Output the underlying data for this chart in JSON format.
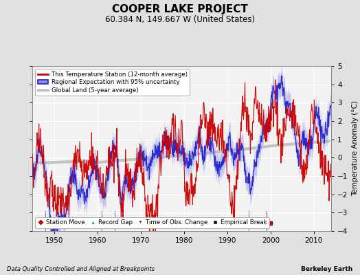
{
  "title": "COOPER LAKE PROJECT",
  "subtitle": "60.384 N, 149.667 W (United States)",
  "ylabel": "Temperature Anomaly (°C)",
  "footer_left": "Data Quality Controlled and Aligned at Breakpoints",
  "footer_right": "Berkeley Earth",
  "xlim": [
    1945,
    2014
  ],
  "ylim": [
    -4,
    5
  ],
  "yticks": [
    -4,
    -3,
    -2,
    -1,
    0,
    1,
    2,
    3,
    4,
    5
  ],
  "xticks": [
    1950,
    1960,
    1970,
    1980,
    1990,
    2000,
    2010
  ],
  "bg_color": "#e0e0e0",
  "plot_bg_color": "#f2f2f2",
  "grid_color": "#ffffff",
  "station_move_years": [
    1972,
    1999,
    2000
  ],
  "tobs_change_years": [
    1948,
    1970
  ],
  "empirical_break_years": [
    1961,
    1964,
    1972,
    1995,
    1999,
    2000
  ],
  "red_line_color": "#cc0000",
  "blue_line_color": "#2222cc",
  "blue_fill_color": "#8888ee",
  "gray_line_color": "#bbbbbb",
  "marker_red_color": "#cc0000",
  "marker_green_color": "#009900",
  "marker_blue_color": "#2222cc",
  "marker_black_color": "#111111"
}
